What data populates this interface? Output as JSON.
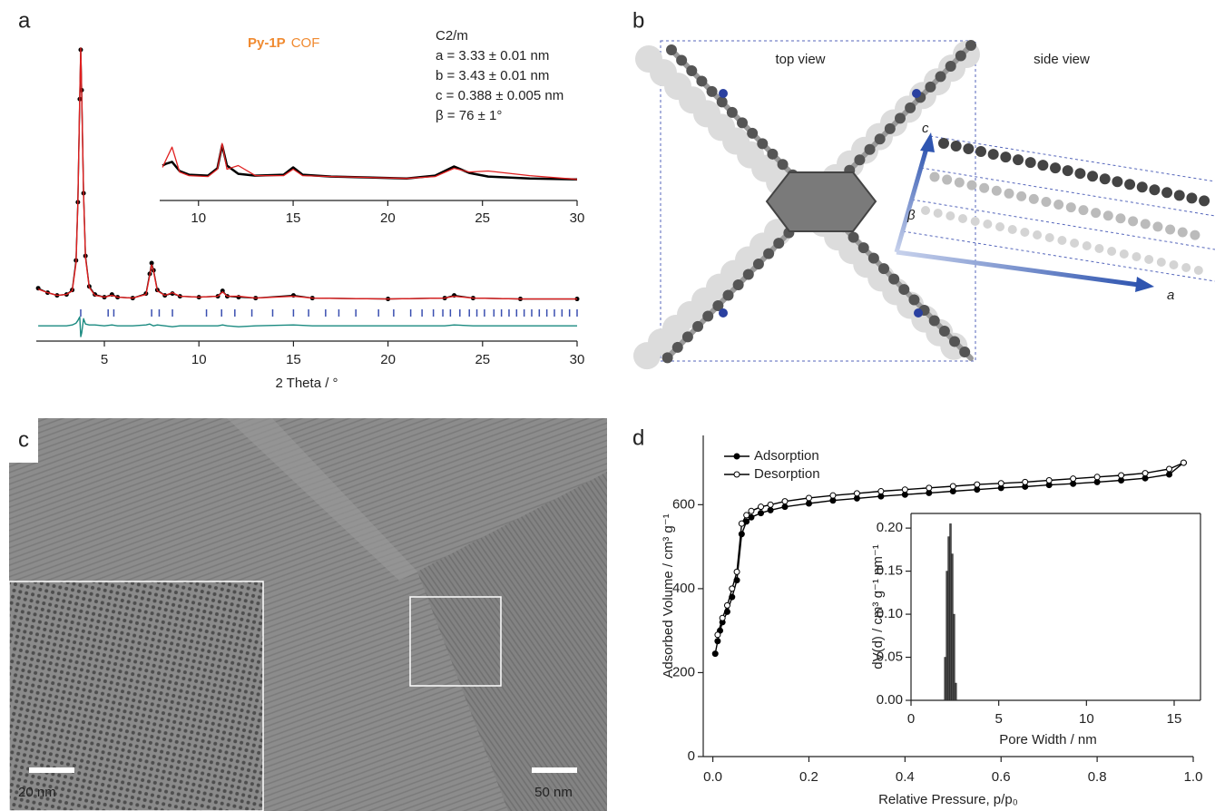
{
  "chart_data": [
    {
      "type": "line",
      "panel": "a",
      "title_parts": [
        "Py-1P",
        "COF"
      ],
      "title_color": "#f08a30",
      "annotations": [
        "C2/m",
        "a = 3.33 ± 0.01 nm",
        "b = 3.43 ± 0.01 nm",
        "c = 0.388 ± 0.005 nm",
        "β = 76 ± 1°"
      ],
      "xlabel": "2 Theta / °",
      "xlim": [
        1.4,
        30
      ],
      "xticks": [
        5,
        10,
        15,
        20,
        25,
        30
      ],
      "ylim": [
        -45,
        290
      ],
      "x": [
        1.5,
        2.0,
        2.5,
        3.0,
        3.3,
        3.5,
        3.6,
        3.7,
        3.75,
        3.8,
        3.9,
        4.0,
        4.2,
        4.5,
        5.0,
        5.4,
        5.7,
        6.5,
        7.2,
        7.4,
        7.5,
        7.6,
        7.8,
        8.2,
        8.6,
        9.0,
        10.0,
        11.0,
        11.25,
        11.5,
        12.1,
        13.0,
        15.0,
        16.0,
        20.0,
        23.0,
        23.5,
        24.5,
        27.0,
        30.0
      ],
      "series": [
        {
          "color": "#000000",
          "marker": "dot",
          "values": [
            14,
            9,
            6,
            7,
            12,
            45,
            110,
            225,
            280,
            235,
            120,
            50,
            16,
            7,
            4,
            7,
            4,
            3,
            8,
            30,
            42,
            34,
            12,
            6,
            8,
            5,
            4,
            5,
            11,
            5,
            4,
            3,
            6,
            3,
            2,
            3,
            6,
            3,
            2,
            2
          ]
        },
        {
          "color": "#e02020",
          "values": [
            13,
            9,
            6,
            7,
            11,
            42,
            108,
            228,
            282,
            232,
            118,
            48,
            15,
            6,
            4,
            6,
            4,
            3,
            7,
            28,
            40,
            33,
            11,
            6,
            9,
            5,
            4,
            5,
            10,
            5,
            5,
            3,
            5,
            3,
            2,
            3,
            5,
            3,
            2,
            2
          ]
        },
        {
          "color": "#1a8a80",
          "values": [
            -28,
            -28,
            -28,
            -28,
            -27,
            -25,
            -22,
            -18,
            -40,
            -36,
            -20,
            -26,
            -27,
            -27,
            -28,
            -27,
            -28,
            -28,
            -27,
            -26,
            -27,
            -28,
            -27,
            -28,
            -29,
            -28,
            -28,
            -28,
            -27,
            -28,
            -29,
            -28,
            -27,
            -28,
            -28,
            -28,
            -27,
            -28,
            -28,
            -28
          ]
        }
      ],
      "reflections": [
        3.75,
        5.2,
        5.5,
        7.5,
        7.9,
        8.6,
        10.4,
        11.2,
        11.9,
        12.8,
        13.9,
        15.0,
        15.8,
        16.7,
        17.4,
        18.3,
        19.5,
        20.3,
        21.2,
        21.8,
        22.4,
        22.9,
        23.3,
        23.8,
        24.3,
        24.7,
        25.1,
        25.6,
        26.0,
        26.4,
        26.8,
        27.2,
        27.6,
        28.0,
        28.4,
        28.8,
        29.2,
        29.6,
        30.0
      ],
      "reflection_color": "#3a4fb0"
    },
    {
      "type": "line",
      "xlim": [
        7.95,
        30
      ],
      "xticks": [
        10,
        15,
        20,
        25,
        30
      ],
      "ylim": [
        0,
        70
      ],
      "x": [
        8.1,
        8.3,
        8.6,
        9.0,
        9.5,
        10.5,
        11.0,
        11.25,
        11.5,
        12.1,
        13.0,
        14.5,
        15.0,
        15.5,
        17.0,
        19.0,
        21.0,
        22.5,
        23.5,
        24.3,
        25.3,
        27.5,
        30.0
      ],
      "series": [
        {
          "color": "#000000",
          "values": [
            38,
            40,
            42,
            32,
            28,
            27,
            35,
            60,
            38,
            29,
            27,
            28,
            36,
            28,
            26,
            25,
            24,
            27,
            37,
            30,
            26,
            24,
            23
          ]
        },
        {
          "color": "#e02020",
          "values": [
            36,
            45,
            58,
            31,
            27,
            26,
            34,
            62,
            34,
            38,
            27,
            27,
            34,
            27,
            26,
            25,
            24,
            26,
            35,
            31,
            32,
            27,
            23
          ]
        }
      ]
    },
    {
      "type": "line",
      "panel": "d",
      "xlabel": "Relative Pressure, p/p₀",
      "ylabel": "Adsorbed Volume / cm³ g⁻¹",
      "xlim": [
        -0.02,
        1.0
      ],
      "xticks": [
        {
          "value": 0,
          "label": "0.0"
        },
        0.2,
        0.4,
        0.6,
        0.8,
        {
          "value": 1,
          "label": "1.0"
        }
      ],
      "ylim": [
        0,
        765
      ],
      "yticks": [
        0,
        200,
        400,
        600
      ],
      "legend": "upper left",
      "series": [
        {
          "name": "Adsorption",
          "color": "#000000",
          "marker": "filled",
          "x": [
            0.005,
            0.01,
            0.015,
            0.02,
            0.03,
            0.04,
            0.05,
            0.06,
            0.07,
            0.08,
            0.1,
            0.12,
            0.15,
            0.2,
            0.25,
            0.3,
            0.35,
            0.4,
            0.45,
            0.5,
            0.55,
            0.6,
            0.65,
            0.7,
            0.75,
            0.8,
            0.85,
            0.9,
            0.95,
            0.98
          ],
          "values": [
            245,
            275,
            300,
            320,
            345,
            380,
            420,
            530,
            560,
            570,
            580,
            587,
            595,
            603,
            610,
            615,
            620,
            624,
            628,
            632,
            636,
            640,
            643,
            647,
            650,
            654,
            658,
            663,
            672,
            700
          ]
        },
        {
          "name": "Desorption",
          "color": "#000000",
          "marker": "open",
          "x": [
            0.98,
            0.95,
            0.9,
            0.85,
            0.8,
            0.75,
            0.7,
            0.65,
            0.6,
            0.55,
            0.5,
            0.45,
            0.4,
            0.35,
            0.3,
            0.25,
            0.2,
            0.15,
            0.12,
            0.1,
            0.08,
            0.07,
            0.06,
            0.05,
            0.04,
            0.03,
            0.02,
            0.01
          ],
          "values": [
            700,
            685,
            675,
            670,
            666,
            662,
            658,
            654,
            651,
            648,
            644,
            640,
            636,
            632,
            627,
            622,
            616,
            608,
            600,
            595,
            585,
            575,
            555,
            440,
            400,
            360,
            330,
            290
          ]
        }
      ]
    },
    {
      "type": "histogram",
      "xlabel": "Pore Width / nm",
      "ylabel": "dV(d) / cm³ g⁻¹ nm⁻¹",
      "xlim": [
        0,
        16.5
      ],
      "xticks": [
        0,
        5,
        10,
        15
      ],
      "ylim": [
        0,
        0.217
      ],
      "yticks": [
        {
          "value": 0,
          "label": "0.00"
        },
        0.05,
        {
          "value": 0.1,
          "label": "0.10"
        },
        0.15,
        {
          "value": 0.2,
          "label": "0.20"
        }
      ],
      "bins": [
        1.9,
        2.0,
        2.1,
        2.2,
        2.3,
        2.4,
        2.5,
        2.6
      ],
      "values": [
        0.05,
        0.15,
        0.19,
        0.205,
        0.17,
        0.1,
        0.02
      ],
      "color": "#4a4a4a"
    }
  ],
  "structure_panel": {
    "label": "b",
    "top_view": "top view",
    "side_view": "side view",
    "axis_labels": [
      "c",
      "β",
      "a"
    ]
  },
  "tem_panel": {
    "label": "c",
    "scale_bars": [
      "20 nm",
      "50 nm"
    ]
  }
}
